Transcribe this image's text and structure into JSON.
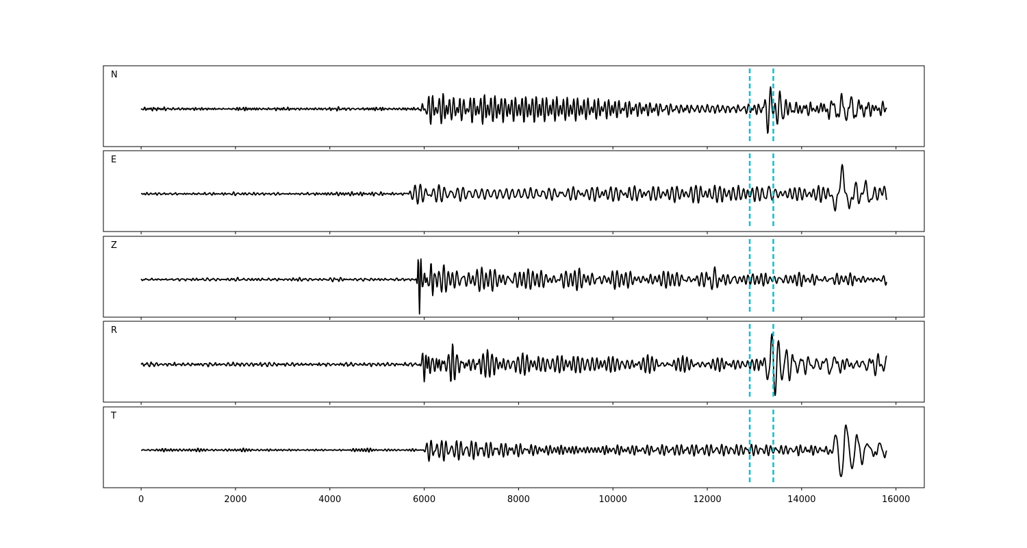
{
  "chart_data": {
    "type": "line",
    "title": "",
    "xlabel": "",
    "ylabel": "",
    "xlim": [
      -800,
      16600
    ],
    "ylim": [
      -1,
      1
    ],
    "x_ticks": [
      0,
      2000,
      4000,
      6000,
      8000,
      10000,
      12000,
      14000,
      16000
    ],
    "x_tick_labels": [
      "0",
      "2000",
      "4000",
      "6000",
      "8000",
      "10000",
      "12000",
      "14000",
      "16000"
    ],
    "n_samples": 15800,
    "pick_lines": [
      12900,
      13400
    ],
    "pick_color": "#17becf",
    "trace_color": "#000000",
    "grid": false,
    "panels": [
      {
        "label": "N",
        "seed": 11,
        "noise_amp": 0.045,
        "events": [
          {
            "x": 6000,
            "amp": 0.28,
            "dur": 8000,
            "period": 95
          },
          {
            "x": 6000,
            "amp": 0.2,
            "dur": 800,
            "period": 70
          },
          {
            "x": 13300,
            "amp": 0.22,
            "dur": 2500,
            "period": 160
          },
          {
            "x": 13350,
            "amp": 0.85,
            "dur": 220,
            "period": 130
          },
          {
            "x": 14500,
            "amp": 0.18,
            "dur": 1500,
            "period": 220
          }
        ]
      },
      {
        "label": "E",
        "seed": 23,
        "noise_amp": 0.045,
        "events": [
          {
            "x": 5700,
            "amp": 0.3,
            "dur": 10000,
            "period": 110
          },
          {
            "x": 13300,
            "amp": 0.3,
            "dur": 300,
            "period": 120
          },
          {
            "x": 14850,
            "amp": 0.8,
            "dur": 380,
            "period": 320
          },
          {
            "x": 15200,
            "amp": 0.25,
            "dur": 700,
            "period": 250
          }
        ]
      },
      {
        "label": "Z",
        "seed": 37,
        "noise_amp": 0.045,
        "events": [
          {
            "x": 5900,
            "amp": 0.9,
            "dur": 160,
            "period": 60
          },
          {
            "x": 6100,
            "amp": 0.3,
            "dur": 10000,
            "period": 110
          },
          {
            "x": 12000,
            "amp": 0.18,
            "dur": 600,
            "period": 160
          }
        ]
      },
      {
        "label": "R",
        "seed": 41,
        "noise_amp": 0.045,
        "events": [
          {
            "x": 6000,
            "amp": 0.28,
            "dur": 8000,
            "period": 95
          },
          {
            "x": 6000,
            "amp": 0.2,
            "dur": 800,
            "period": 70
          },
          {
            "x": 13300,
            "amp": 0.25,
            "dur": 2500,
            "period": 160
          },
          {
            "x": 13380,
            "amp": 0.85,
            "dur": 220,
            "period": 130
          },
          {
            "x": 14600,
            "amp": 0.18,
            "dur": 1500,
            "period": 230
          }
        ]
      },
      {
        "label": "T",
        "seed": 53,
        "noise_amp": 0.045,
        "events": [
          {
            "x": 6100,
            "amp": 0.22,
            "dur": 9500,
            "period": 105
          },
          {
            "x": 14850,
            "amp": 0.85,
            "dur": 320,
            "period": 280
          },
          {
            "x": 15300,
            "amp": 0.25,
            "dur": 700,
            "period": 220
          }
        ]
      }
    ]
  }
}
